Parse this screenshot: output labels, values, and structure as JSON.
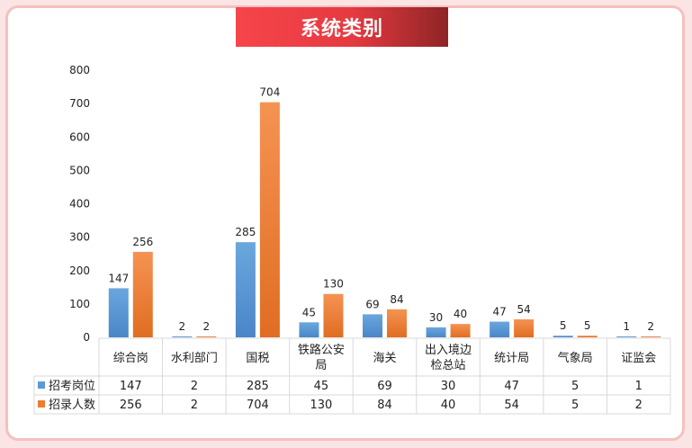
{
  "chart_data": {
    "type": "bar",
    "title": "系统类别",
    "categories": [
      "综合岗",
      "水利部门",
      "国税",
      "铁路公安局",
      "海关",
      "出入境边检总站",
      "统计局",
      "气象局",
      "证监会"
    ],
    "category_lines": [
      [
        "综合岗"
      ],
      [
        "水利部门"
      ],
      [
        "国税"
      ],
      [
        "铁路公安",
        "局"
      ],
      [
        "海关"
      ],
      [
        "出入境边",
        "检总站"
      ],
      [
        "统计局"
      ],
      [
        "气象局"
      ],
      [
        "证监会"
      ]
    ],
    "series": [
      {
        "name": "招考岗位",
        "values": [
          147,
          2,
          285,
          45,
          69,
          30,
          47,
          5,
          1
        ],
        "color": "#5b9bd5"
      },
      {
        "name": "招录人数",
        "values": [
          256,
          2,
          704,
          130,
          84,
          40,
          54,
          5,
          2
        ],
        "color": "#ed7d31"
      }
    ],
    "y_ticks": [
      "0",
      "100",
      "200",
      "300",
      "400",
      "500",
      "600",
      "700",
      "800"
    ],
    "ylim": [
      0,
      800
    ],
    "grid": false,
    "legend": "data-table",
    "xlabel": "",
    "ylabel": ""
  }
}
